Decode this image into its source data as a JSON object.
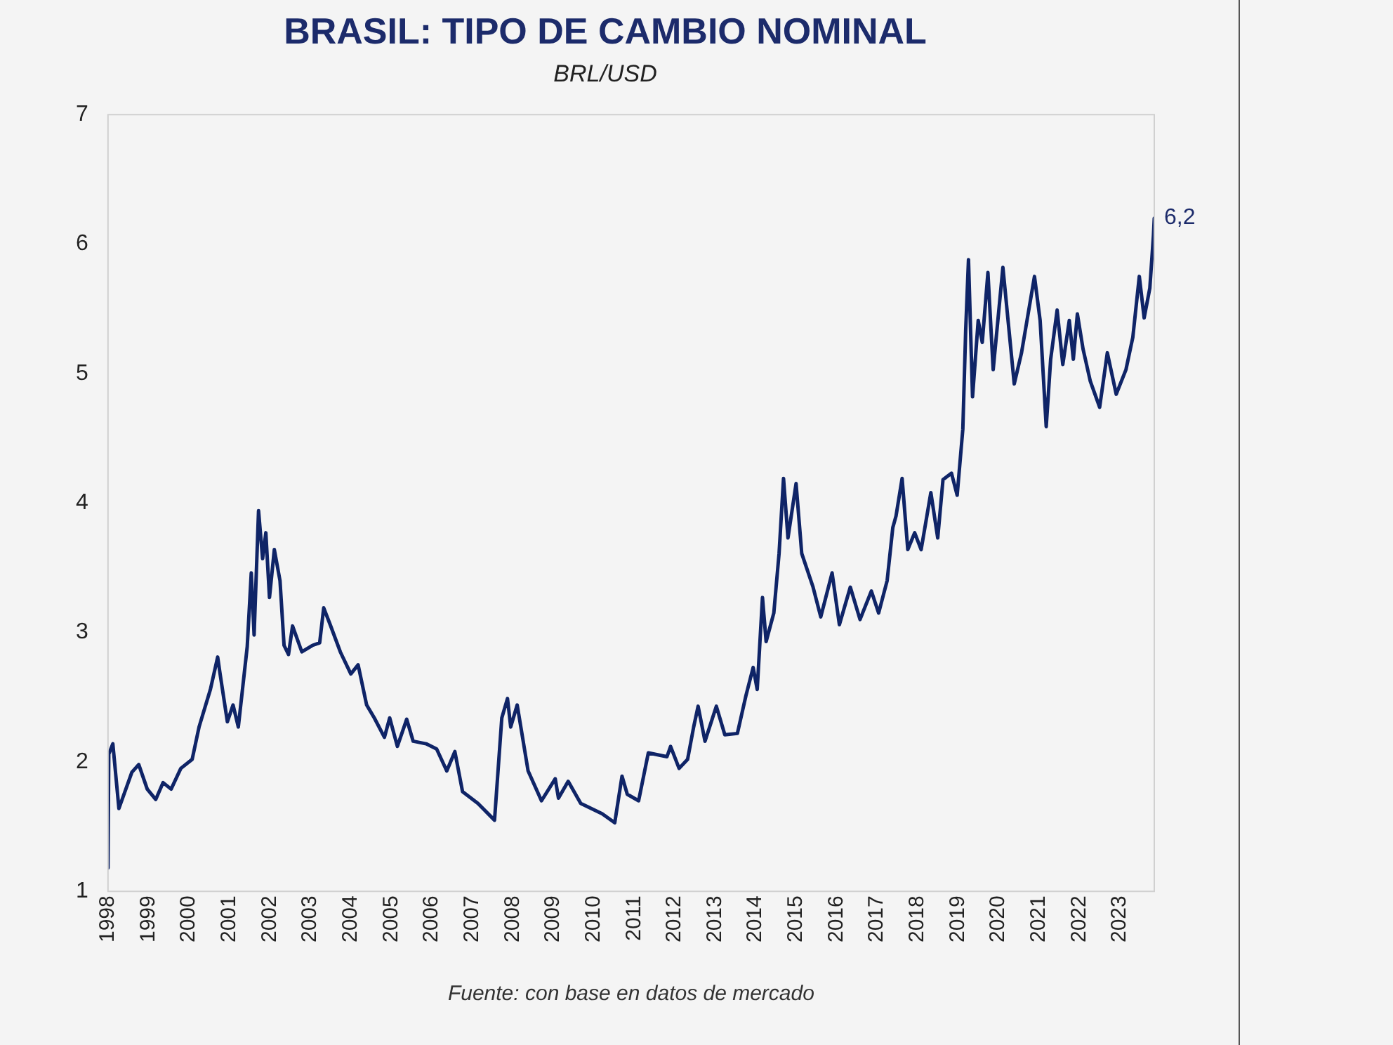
{
  "chart_data": {
    "type": "line",
    "title": "BRASIL: TIPO DE CAMBIO NOMINAL",
    "subtitle": "BRL/USD",
    "annotations": [
      {
        "text": "6,2",
        "x": 2023.85,
        "y": 6.2
      },
      "Fuente: con base en datos de mercado"
    ],
    "xlim": [
      1998,
      2023.85
    ],
    "xticks": [
      1998,
      1999,
      2000,
      2001,
      2002,
      2003,
      2004,
      2005,
      2006,
      2007,
      2008,
      2009,
      2010,
      2011,
      2012,
      2013,
      2014,
      2015,
      2016,
      2017,
      2018,
      2019,
      2020,
      2021,
      2022,
      2023
    ],
    "ylim": [
      1,
      7
    ],
    "yticks": [
      1,
      2,
      3,
      4,
      5,
      6,
      7
    ],
    "grid": false,
    "legend": false,
    "marker": "none",
    "line_style": "solid",
    "x": [
      1998.0,
      1998.02,
      1998.12,
      1998.27,
      1998.59,
      1998.76,
      1998.97,
      1999.18,
      1999.36,
      1999.56,
      1999.8,
      2000.08,
      2000.25,
      2000.53,
      2000.71,
      2000.77,
      2000.95,
      2001.09,
      2001.22,
      2001.44,
      2001.54,
      2001.61,
      2001.72,
      2001.82,
      2001.9,
      2001.99,
      2002.11,
      2002.25,
      2002.35,
      2002.46,
      2002.56,
      2002.79,
      2003.05,
      2003.23,
      2003.33,
      2003.49,
      2003.74,
      2004.0,
      2004.18,
      2004.39,
      2004.58,
      2004.83,
      2004.96,
      2005.15,
      2005.38,
      2005.54,
      2005.86,
      2006.12,
      2006.37,
      2006.57,
      2006.76,
      2007.14,
      2007.55,
      2007.73,
      2007.87,
      2007.95,
      2008.11,
      2008.38,
      2008.71,
      2009.05,
      2009.13,
      2009.37,
      2009.68,
      2010.21,
      2010.52,
      2010.7,
      2010.83,
      2011.11,
      2011.35,
      2011.81,
      2011.9,
      2012.11,
      2012.32,
      2012.47,
      2012.58,
      2012.75,
      2013.03,
      2013.24,
      2013.55,
      2013.76,
      2013.94,
      2014.04,
      2014.17,
      2014.26,
      2014.45,
      2014.58,
      2014.69,
      2014.8,
      2015.0,
      2015.14,
      2015.42,
      2015.61,
      2015.89,
      2016.07,
      2016.34,
      2016.58,
      2016.86,
      2017.04,
      2017.25,
      2017.39,
      2017.47,
      2017.62,
      2017.76,
      2017.93,
      2018.09,
      2018.33,
      2018.5,
      2018.63,
      2018.84,
      2018.98,
      2019.12,
      2019.19,
      2019.26,
      2019.36,
      2019.5,
      2019.6,
      2019.74,
      2019.87,
      2020.11,
      2020.39,
      2020.57,
      2020.89,
      2021.03,
      2021.18,
      2021.29,
      2021.45,
      2021.59,
      2021.75,
      2021.85,
      2021.95,
      2022.09,
      2022.27,
      2022.5,
      2022.69,
      2022.91,
      2023.15,
      2023.32,
      2023.48,
      2023.6,
      2023.74,
      2023.83,
      2023.85
    ],
    "series": [
      {
        "color": "#0f2467",
        "values": [
          1.18,
          2.06,
          2.14,
          1.64,
          1.92,
          1.98,
          1.79,
          1.71,
          1.84,
          1.79,
          1.95,
          2.02,
          2.27,
          2.56,
          2.81,
          2.68,
          2.31,
          2.44,
          2.27,
          2.89,
          3.46,
          2.98,
          3.94,
          3.57,
          3.77,
          3.27,
          3.64,
          3.4,
          2.9,
          2.83,
          3.05,
          2.85,
          2.9,
          2.92,
          3.19,
          3.06,
          2.85,
          2.68,
          2.75,
          2.44,
          2.34,
          2.19,
          2.34,
          2.12,
          2.33,
          2.16,
          2.14,
          2.1,
          1.93,
          2.08,
          1.77,
          1.68,
          1.55,
          2.34,
          2.49,
          2.27,
          2.44,
          1.93,
          1.7,
          1.87,
          1.72,
          1.85,
          1.68,
          1.6,
          1.53,
          1.89,
          1.75,
          1.7,
          2.07,
          2.04,
          2.12,
          1.95,
          2.02,
          2.27,
          2.43,
          2.16,
          2.43,
          2.21,
          2.22,
          2.51,
          2.73,
          2.56,
          3.27,
          2.93,
          3.15,
          3.61,
          4.19,
          3.73,
          4.15,
          3.61,
          3.35,
          3.12,
          3.46,
          3.06,
          3.35,
          3.1,
          3.32,
          3.15,
          3.4,
          3.81,
          3.9,
          4.19,
          3.64,
          3.77,
          3.64,
          4.08,
          3.73,
          4.18,
          4.23,
          4.06,
          4.57,
          5.33,
          5.88,
          4.82,
          5.41,
          5.24,
          5.78,
          5.03,
          5.82,
          4.92,
          5.16,
          5.75,
          5.41,
          4.59,
          5.11,
          5.49,
          5.07,
          5.41,
          5.11,
          5.46,
          5.19,
          4.94,
          4.74,
          5.16,
          4.84,
          5.03,
          5.28,
          5.75,
          5.43,
          5.66,
          6.07,
          6.2
        ]
      }
    ]
  }
}
